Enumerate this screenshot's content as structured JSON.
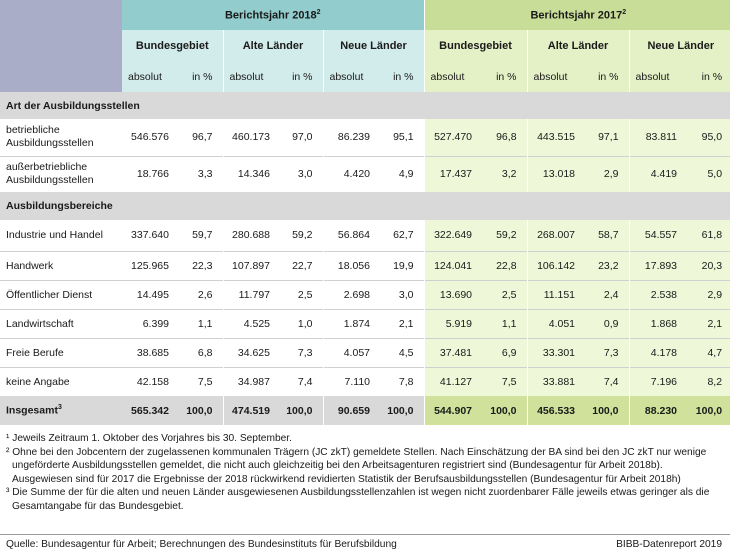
{
  "header": {
    "year_2018": "Berichtsjahr 2018",
    "year_2018_sup": "2",
    "year_2017": "Berichtsjahr 2017",
    "year_2017_sup": "2",
    "regions": [
      "Bundesgebiet",
      "Alte Länder",
      "Neue Länder"
    ],
    "absolut": "absolut",
    "in_pct": "in %"
  },
  "sections": {
    "art": "Art der Ausbildungsstellen",
    "bereiche": "Ausbildungsbereiche"
  },
  "rows_art": [
    {
      "label": "betriebliche Ausbildungsstellen",
      "values": [
        "546.576",
        "96,7",
        "460.173",
        "97,0",
        "86.239",
        "95,1",
        "527.470",
        "96,8",
        "443.515",
        "97,1",
        "83.811",
        "95,0"
      ]
    },
    {
      "label": "außerbetriebliche Ausbildungsstellen",
      "values": [
        "18.766",
        "3,3",
        "14.346",
        "3,0",
        "4.420",
        "4,9",
        "17.437",
        "3,2",
        "13.018",
        "2,9",
        "4.419",
        "5,0"
      ]
    }
  ],
  "rows_bereiche": [
    {
      "label": "Industrie und Handel",
      "values": [
        "337.640",
        "59,7",
        "280.688",
        "59,2",
        "56.864",
        "62,7",
        "322.649",
        "59,2",
        "268.007",
        "58,7",
        "54.557",
        "61,8"
      ]
    },
    {
      "label": "Handwerk",
      "values": [
        "125.965",
        "22,3",
        "107.897",
        "22,7",
        "18.056",
        "19,9",
        "124.041",
        "22,8",
        "106.142",
        "23,2",
        "17.893",
        "20,3"
      ]
    },
    {
      "label": "Öffentlicher Dienst",
      "values": [
        "14.495",
        "2,6",
        "11.797",
        "2,5",
        "2.698",
        "3,0",
        "13.690",
        "2,5",
        "11.151",
        "2,4",
        "2.538",
        "2,9"
      ]
    },
    {
      "label": "Landwirtschaft",
      "values": [
        "6.399",
        "1,1",
        "4.525",
        "1,0",
        "1.874",
        "2,1",
        "5.919",
        "1,1",
        "4.051",
        "0,9",
        "1.868",
        "2,1"
      ]
    },
    {
      "label": "Freie Berufe",
      "values": [
        "38.685",
        "6,8",
        "34.625",
        "7,3",
        "4.057",
        "4,5",
        "37.481",
        "6,9",
        "33.301",
        "7,3",
        "4.178",
        "4,7"
      ]
    },
    {
      "label": "keine Angabe",
      "values": [
        "42.158",
        "7,5",
        "34.987",
        "7,4",
        "7.110",
        "7,8",
        "41.127",
        "7,5",
        "33.881",
        "7,4",
        "7.196",
        "8,2"
      ]
    }
  ],
  "total": {
    "label": "Insgesamt",
    "sup": "3",
    "values": [
      "565.342",
      "100,0",
      "474.519",
      "100,0",
      "90.659",
      "100,0",
      "544.907",
      "100,0",
      "456.533",
      "100,0",
      "88.230",
      "100,0"
    ]
  },
  "footnotes": [
    "¹ Jeweils Zeitraum 1. Oktober des Vorjahres bis 30. September.",
    "² Ohne bei den Jobcentern der zugelassenen kommunalen Trägern (JC zkT) gemeldete Stellen. Nach Einschätzung der BA sind bei den JC zkT nur wenige ungeförderte Ausbildungsstellen gemeldet, die nicht auch gleichzeitig bei den Arbeitsagenturen registriert sind (Bundesagentur für Arbeit 2018b). Ausgewiesen sind für 2017 die Ergebnisse der 2018 rückwirkend revidierten Statistik der Berufsausbildungsstellen (Bundesagentur für Arbeit 2018h)",
    "³ Die Summe der für die alten und neuen Länder ausgewiesenen Ausbildungsstellenzahlen ist wegen nicht zuordenbarer Fälle jeweils etwas geringer als die Gesamtangabe für das Bundesgebiet."
  ],
  "source": "Quelle: Bundesagentur für Arbeit; Berechnungen des Bundesinstituts für Berufsbildung",
  "credit": "BIBB-Datenreport 2019"
}
